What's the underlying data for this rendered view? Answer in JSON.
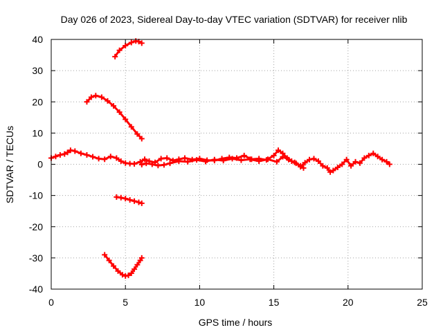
{
  "chart_data": {
    "type": "scatter",
    "title": "Day 026 of 2023, Sidereal Day-to-day VTEC variation (SDTVAR) for receiver nlib",
    "xlabel": "GPS time / hours",
    "ylabel": "SDTVAR / TECUs",
    "xlim": [
      0,
      25
    ],
    "ylim": [
      -40,
      40
    ],
    "xticks": [
      0,
      5,
      10,
      15,
      20,
      25
    ],
    "yticks": [
      -40,
      -30,
      -20,
      -10,
      0,
      10,
      20,
      30,
      40
    ],
    "xtick_labels": [
      "0",
      "5",
      "10",
      "15",
      "20",
      "25"
    ],
    "ytick_labels": [
      "-40",
      "-30",
      "-20",
      "-10",
      "0",
      "10",
      "20",
      "30",
      "40"
    ],
    "grid": true,
    "marker": "plus",
    "color": "#ff0000",
    "series": [
      {
        "name": "satellite-arc-upper-1",
        "x": [
          4.3,
          4.6,
          5.0,
          5.4,
          5.7,
          5.9,
          6.1
        ],
        "y": [
          34.5,
          36.5,
          38.0,
          39.0,
          39.5,
          39.3,
          38.8
        ]
      },
      {
        "name": "satellite-arc-upper-2",
        "x": [
          2.4,
          2.7,
          3.0,
          3.4,
          3.8,
          4.2,
          4.6,
          5.0,
          5.4,
          5.8,
          6.1
        ],
        "y": [
          20.0,
          21.5,
          22.0,
          21.5,
          20.3,
          18.7,
          16.7,
          14.4,
          12.0,
          9.7,
          8.2
        ]
      },
      {
        "name": "main-band",
        "x": [
          0.0,
          0.3,
          0.6,
          0.9,
          1.1,
          1.3,
          1.6,
          2.0,
          2.4,
          2.8,
          3.2,
          3.6,
          4.0,
          4.4,
          4.7,
          5.0,
          5.3,
          5.6,
          6.0,
          6.3,
          6.6,
          7.0,
          7.4,
          7.8,
          8.2,
          8.6,
          9.0,
          9.5,
          10.0,
          10.5,
          11.0,
          11.5,
          12.0,
          12.5,
          13.0,
          13.5,
          14.0,
          14.5,
          15.0,
          15.3,
          15.6,
          15.9,
          16.2,
          16.5,
          16.8,
          17.1,
          17.4,
          17.7,
          18.0,
          18.3,
          18.6,
          18.8,
          19.0,
          19.3,
          19.6,
          19.9,
          20.2,
          20.5,
          20.8,
          21.1,
          21.4,
          21.7,
          22.0,
          22.3,
          22.6,
          22.8
        ],
        "y": [
          2.0,
          2.5,
          3.0,
          3.3,
          3.8,
          4.5,
          4.2,
          3.5,
          3.0,
          2.4,
          1.8,
          1.6,
          2.5,
          2.0,
          1.0,
          0.4,
          0.2,
          0.1,
          0.8,
          1.6,
          1.0,
          0.6,
          1.8,
          2.0,
          1.2,
          1.6,
          2.0,
          1.5,
          1.8,
          1.3,
          1.2,
          1.8,
          2.2,
          2.0,
          2.8,
          1.6,
          1.8,
          1.4,
          2.8,
          4.5,
          3.5,
          2.0,
          1.0,
          0.3,
          -0.8,
          0.5,
          1.5,
          1.8,
          1.0,
          -0.5,
          -1.2,
          -2.5,
          -2.0,
          -1.0,
          0.0,
          1.5,
          -0.5,
          0.8,
          0.4,
          2.0,
          2.8,
          3.5,
          2.5,
          1.5,
          0.8,
          0.0
        ]
      },
      {
        "name": "main-band-secondary",
        "x": [
          6.1,
          6.4,
          6.8,
          7.2,
          7.6,
          8.0,
          8.6,
          9.2,
          9.8,
          10.4,
          11.0,
          11.6,
          12.2,
          12.8,
          13.4,
          14.0,
          14.6,
          15.2,
          15.6,
          16.0,
          16.4,
          16.8,
          17.0
        ],
        "y": [
          -0.1,
          0.3,
          0.0,
          -0.4,
          -0.2,
          0.3,
          1.0,
          0.8,
          1.4,
          0.9,
          1.5,
          1.2,
          1.8,
          1.3,
          1.6,
          1.0,
          1.6,
          0.8,
          2.4,
          1.5,
          0.6,
          -0.5,
          -1.2
        ]
      },
      {
        "name": "satellite-arc-lower-1",
        "x": [
          4.4,
          4.7,
          5.0,
          5.3,
          5.6,
          5.9,
          6.1
        ],
        "y": [
          -10.5,
          -10.7,
          -11.0,
          -11.4,
          -11.8,
          -12.2,
          -12.5
        ]
      },
      {
        "name": "satellite-arc-lower-2",
        "x": [
          3.6,
          3.9,
          4.2,
          4.5,
          4.8,
          5.0,
          5.2,
          5.4,
          5.6,
          5.8,
          6.0,
          6.1
        ],
        "y": [
          -29.0,
          -30.8,
          -32.6,
          -34.2,
          -35.4,
          -35.8,
          -35.6,
          -34.9,
          -33.6,
          -32.2,
          -30.8,
          -30.0
        ]
      }
    ]
  }
}
